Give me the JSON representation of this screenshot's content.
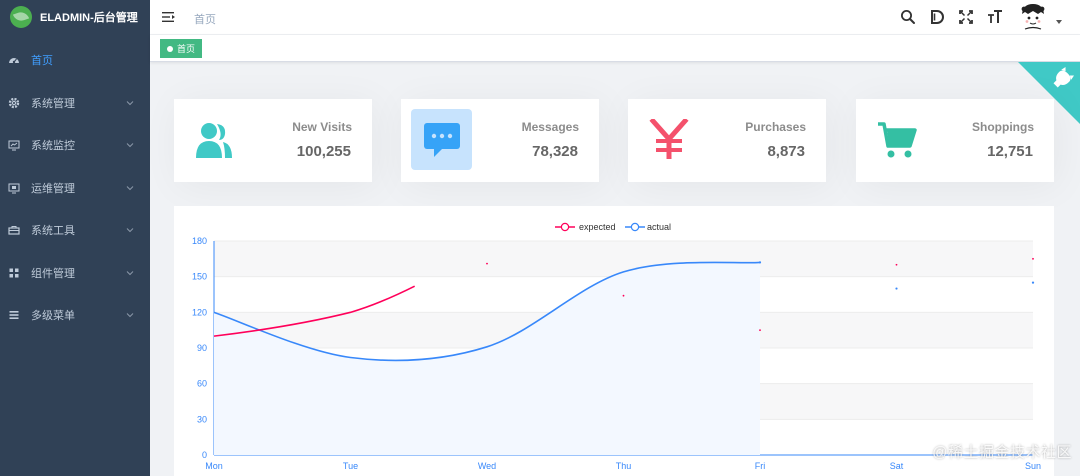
{
  "app": {
    "title": "ELADMIN-后台管理"
  },
  "sidebar": {
    "items": [
      {
        "label": "首页",
        "icon": "dashboard-icon",
        "active": true,
        "expandable": false
      },
      {
        "label": "系统管理",
        "icon": "gear-icon",
        "active": false,
        "expandable": true
      },
      {
        "label": "系统监控",
        "icon": "monitor-icon",
        "active": false,
        "expandable": true
      },
      {
        "label": "运维管理",
        "icon": "server-icon",
        "active": false,
        "expandable": true
      },
      {
        "label": "系统工具",
        "icon": "toolbox-icon",
        "active": false,
        "expandable": true
      },
      {
        "label": "组件管理",
        "icon": "grid-icon",
        "active": false,
        "expandable": true
      },
      {
        "label": "多级菜单",
        "icon": "list-icon",
        "active": false,
        "expandable": true
      }
    ]
  },
  "navbar": {
    "breadcrumb": "首页",
    "icons": [
      "search-icon",
      "doc-icon",
      "fullscreen-icon",
      "font-size-icon"
    ]
  },
  "tags": {
    "active_label": "首页"
  },
  "panels": [
    {
      "label": "New Visits",
      "value": "100,255",
      "icon": "people-icon",
      "color": "#40c9c6"
    },
    {
      "label": "Messages",
      "value": "78,328",
      "icon": "message-icon",
      "color": "#36a3f7"
    },
    {
      "label": "Purchases",
      "value": "8,873",
      "icon": "money-icon",
      "color": "#f4516c"
    },
    {
      "label": "Shoppings",
      "value": "12,751",
      "icon": "shopping-icon",
      "color": "#34bfa3"
    }
  ],
  "chart_data": {
    "type": "line",
    "categories": [
      "Mon",
      "Tue",
      "Wed",
      "Thu",
      "Fri",
      "Sat",
      "Sun"
    ],
    "series": [
      {
        "name": "expected",
        "color": "#ff005a",
        "values": [
          100,
          120,
          161,
          134,
          105,
          160,
          165
        ]
      },
      {
        "name": "actual",
        "color": "#3888fa",
        "values": [
          120,
          82,
          91,
          154,
          162,
          140,
          145
        ]
      }
    ],
    "yticks": [
      0,
      30,
      60,
      90,
      120,
      150,
      180
    ],
    "ylim": [
      0,
      180
    ],
    "legend": "top-center"
  },
  "watermark": "@稀土掘金技术社区"
}
